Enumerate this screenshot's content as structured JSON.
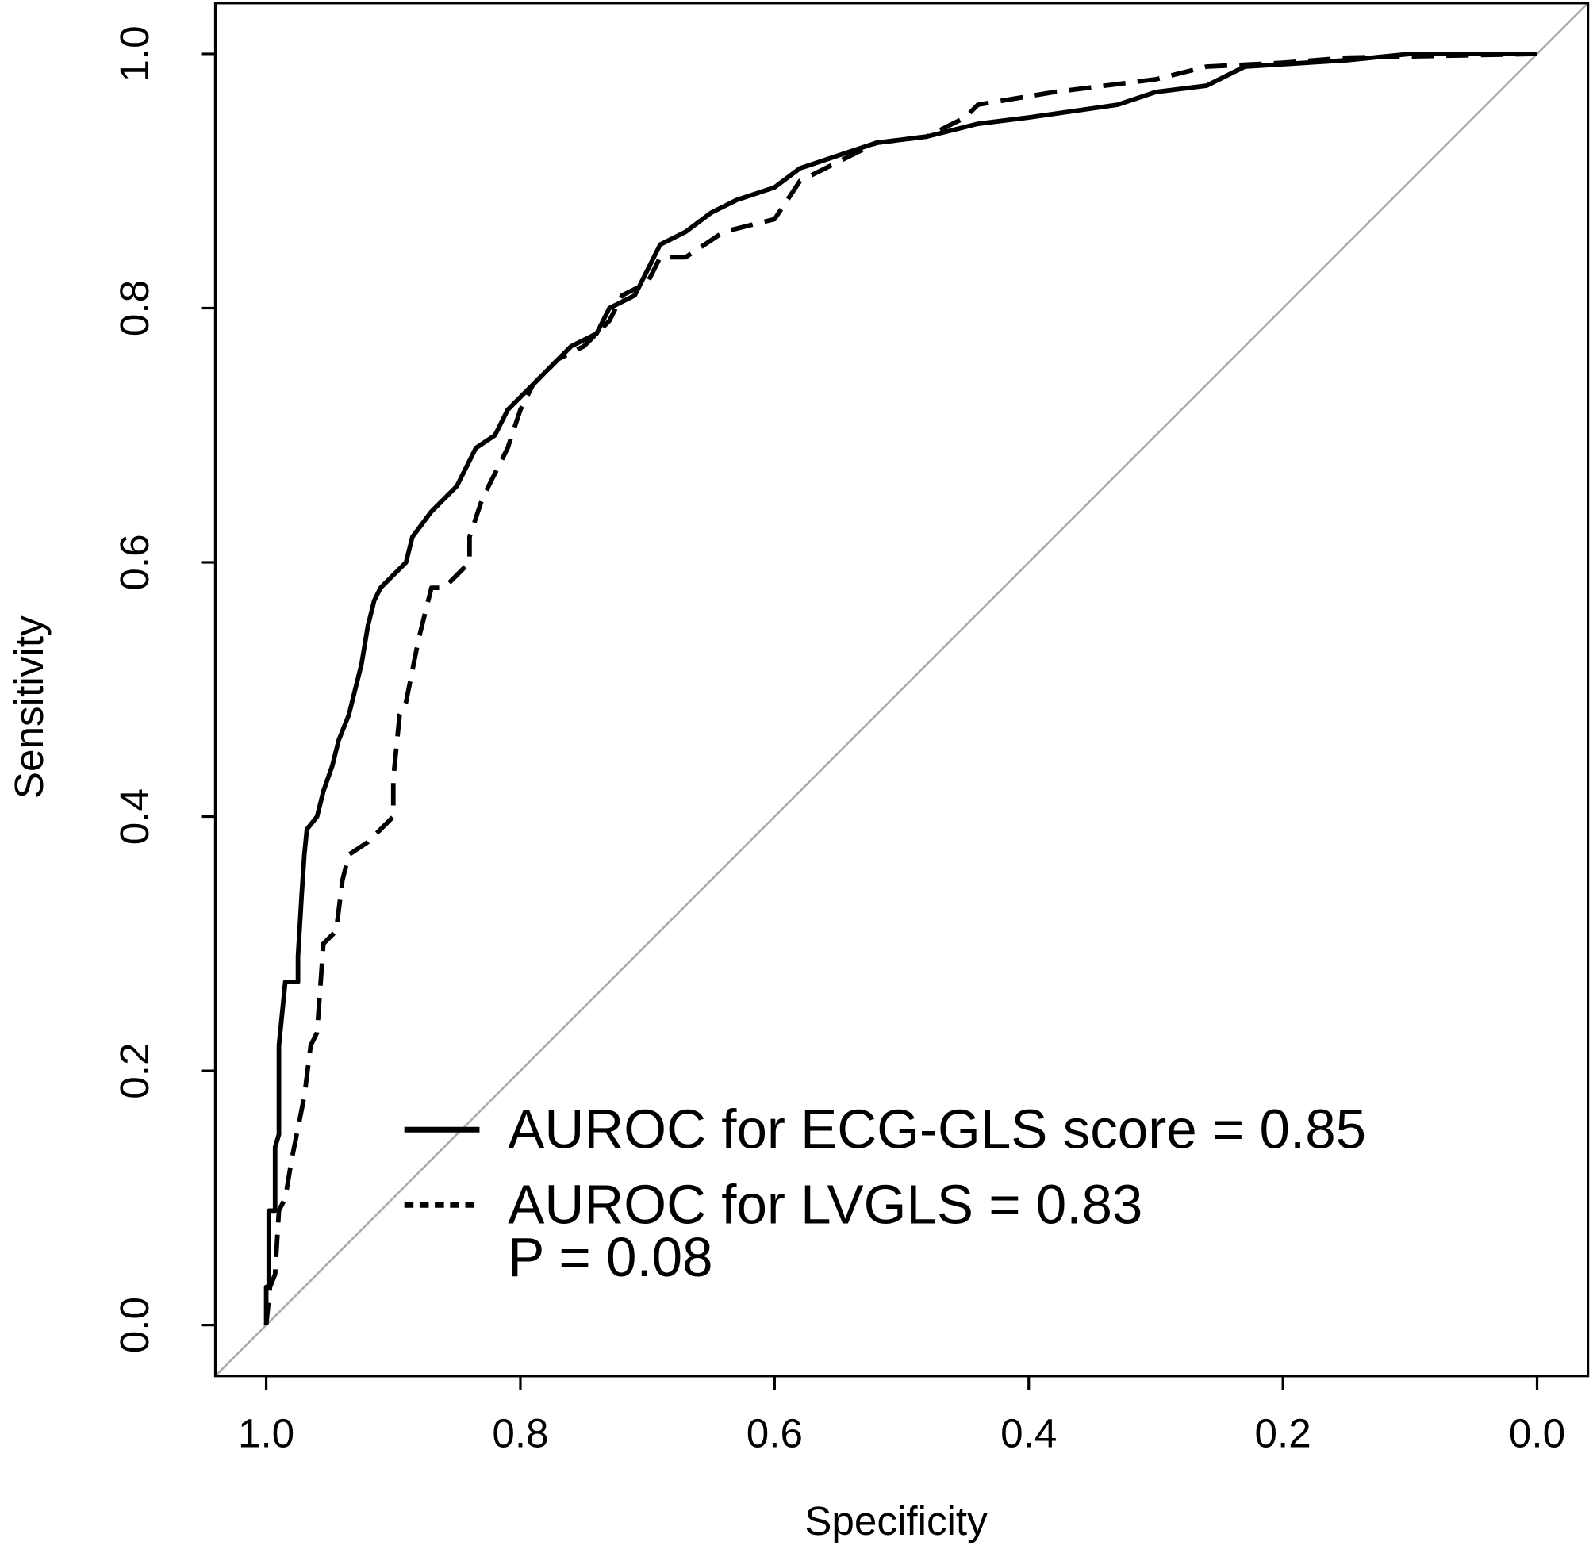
{
  "chart_data": {
    "type": "line",
    "xlabel": "Specificity",
    "ylabel": "Sensitivity",
    "xlim": [
      1.04,
      -0.04
    ],
    "ylim": [
      -0.04,
      1.04
    ],
    "xticks": [
      {
        "value": 1,
        "label": "1.0"
      },
      0.8,
      0.6,
      0.4,
      0.2,
      {
        "value": 0,
        "label": "0.0"
      }
    ],
    "yticks": [
      {
        "value": 0,
        "label": "0.0"
      },
      0.2,
      0.4,
      0.6,
      0.8,
      {
        "value": 1,
        "label": "1.0"
      }
    ],
    "legend": "bottom-right",
    "annotation": "P = 0.08",
    "series": [
      {
        "name": "AUROC for ECG-GLS score = 0.85",
        "color": "#000000",
        "style": "solid",
        "x": [
          1.0,
          1.0,
          0.998,
          0.998,
          0.993,
          0.993,
          0.99,
          0.99,
          0.985,
          0.975,
          0.975,
          0.972,
          0.97,
          0.968,
          0.96,
          0.955,
          0.948,
          0.943,
          0.935,
          0.93,
          0.925,
          0.92,
          0.915,
          0.91,
          0.89,
          0.885,
          0.87,
          0.86,
          0.85,
          0.84,
          0.835,
          0.82,
          0.81,
          0.79,
          0.78,
          0.77,
          0.76,
          0.74,
          0.73,
          0.71,
          0.7,
          0.69,
          0.67,
          0.65,
          0.63,
          0.6,
          0.58,
          0.55,
          0.52,
          0.48,
          0.44,
          0.4,
          0.33,
          0.3,
          0.26,
          0.23,
          0.15,
          0.1,
          0.0
        ],
        "values": [
          0.0,
          0.03,
          0.03,
          0.09,
          0.09,
          0.14,
          0.15,
          0.22,
          0.27,
          0.27,
          0.29,
          0.34,
          0.37,
          0.39,
          0.4,
          0.42,
          0.44,
          0.46,
          0.48,
          0.5,
          0.52,
          0.55,
          0.57,
          0.58,
          0.6,
          0.62,
          0.64,
          0.65,
          0.66,
          0.68,
          0.69,
          0.7,
          0.72,
          0.74,
          0.75,
          0.76,
          0.77,
          0.78,
          0.8,
          0.81,
          0.83,
          0.85,
          0.86,
          0.875,
          0.885,
          0.895,
          0.91,
          0.92,
          0.93,
          0.935,
          0.945,
          0.95,
          0.96,
          0.97,
          0.975,
          0.99,
          0.995,
          1.0,
          1.0
        ]
      },
      {
        "name": "AUROC for LVGLS = 0.83",
        "color": "#000000",
        "style": "dashed",
        "x": [
          1.0,
          0.997,
          0.993,
          0.99,
          0.985,
          0.98,
          0.97,
          0.965,
          0.96,
          0.955,
          0.945,
          0.94,
          0.935,
          0.92,
          0.9,
          0.9,
          0.895,
          0.89,
          0.88,
          0.87,
          0.86,
          0.84,
          0.84,
          0.83,
          0.81,
          0.8,
          0.79,
          0.77,
          0.75,
          0.73,
          0.72,
          0.7,
          0.69,
          0.67,
          0.64,
          0.6,
          0.58,
          0.56,
          0.52,
          0.48,
          0.45,
          0.44,
          0.38,
          0.3,
          0.26,
          0.2,
          0.15,
          0.0
        ],
        "values": [
          0.0,
          0.03,
          0.04,
          0.09,
          0.1,
          0.13,
          0.18,
          0.22,
          0.23,
          0.3,
          0.31,
          0.35,
          0.37,
          0.38,
          0.4,
          0.43,
          0.48,
          0.49,
          0.54,
          0.58,
          0.58,
          0.6,
          0.62,
          0.65,
          0.69,
          0.72,
          0.74,
          0.76,
          0.77,
          0.79,
          0.81,
          0.82,
          0.84,
          0.84,
          0.86,
          0.87,
          0.9,
          0.91,
          0.93,
          0.935,
          0.95,
          0.96,
          0.97,
          0.98,
          0.99,
          0.993,
          0.997,
          1.0
        ]
      }
    ]
  }
}
